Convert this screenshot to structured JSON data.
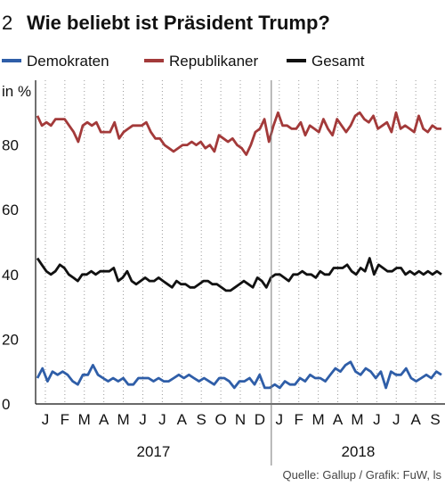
{
  "chart_data": {
    "type": "line",
    "number": "2",
    "title": "Wie beliebt ist Präsident Trump?",
    "ylabel": "in %",
    "ylim": [
      0,
      100
    ],
    "yticks": [
      0,
      20,
      40,
      60,
      80
    ],
    "grid": "vertical, dotted",
    "legend_position": "top-left",
    "x_start": "2017-01",
    "x_end": "2018-09",
    "month_labels": [
      "J",
      "F",
      "M",
      "A",
      "M",
      "J",
      "J",
      "A",
      "S",
      "O",
      "N",
      "D",
      "J",
      "F",
      "M",
      "A",
      "M",
      "J",
      "J",
      "A",
      "S"
    ],
    "years": [
      {
        "label": "2017"
      },
      {
        "label": "2018"
      }
    ],
    "source": "Quelle: Gallup / Grafik: FuW, ls",
    "series": [
      {
        "name": "Demokraten",
        "color": "#2f5ea8",
        "values": [
          8,
          11,
          7,
          10,
          9,
          10,
          9,
          7,
          6,
          9,
          9,
          12,
          9,
          8,
          7,
          8,
          7,
          8,
          6,
          6,
          8,
          8,
          8,
          7,
          8,
          7,
          7,
          8,
          9,
          8,
          9,
          8,
          7,
          8,
          7,
          6,
          8,
          8,
          7,
          5,
          7,
          7,
          8,
          6,
          9,
          5,
          5,
          6,
          5,
          7,
          6,
          6,
          8,
          7,
          9,
          8,
          8,
          7,
          9,
          11,
          10,
          12,
          13,
          10,
          9,
          11,
          10,
          8,
          10,
          5,
          10,
          9,
          9,
          11,
          8,
          7,
          8,
          9,
          8,
          10,
          9
        ]
      },
      {
        "name": "Republikaner",
        "color": "#a33a3a",
        "values": [
          89,
          86,
          87,
          86,
          88,
          88,
          88,
          86,
          84,
          81,
          86,
          87,
          86,
          87,
          84,
          84,
          84,
          87,
          82,
          84,
          85,
          86,
          86,
          86,
          87,
          84,
          82,
          82,
          80,
          79,
          78,
          79,
          80,
          80,
          81,
          80,
          81,
          79,
          80,
          78,
          83,
          82,
          81,
          82,
          80,
          79,
          77,
          80,
          84,
          85,
          88,
          81,
          86,
          90,
          86,
          86,
          85,
          85,
          87,
          83,
          86,
          85,
          84,
          88,
          85,
          83,
          88,
          86,
          84,
          86,
          89,
          90,
          88,
          87,
          89,
          85,
          86,
          87,
          84,
          90,
          85,
          86,
          85,
          84,
          89,
          85,
          84,
          86,
          85,
          85
        ]
      },
      {
        "name": "Gesamt",
        "color": "#111111",
        "values": [
          45,
          43,
          41,
          40,
          41,
          43,
          42,
          40,
          39,
          38,
          40,
          40,
          41,
          40,
          41,
          41,
          41,
          42,
          38,
          39,
          41,
          38,
          37,
          38,
          39,
          38,
          38,
          39,
          38,
          37,
          36,
          38,
          37,
          37,
          36,
          36,
          37,
          38,
          38,
          37,
          37,
          36,
          35,
          35,
          36,
          37,
          38,
          37,
          36,
          39,
          38,
          36,
          39,
          40,
          40,
          39,
          38,
          40,
          40,
          41,
          40,
          40,
          39,
          41,
          40,
          40,
          42,
          42,
          42,
          43,
          41,
          40,
          42,
          41,
          45,
          40,
          43,
          42,
          41,
          41,
          42,
          42,
          40,
          41,
          40,
          41,
          40,
          41,
          40,
          41,
          40
        ]
      }
    ]
  }
}
